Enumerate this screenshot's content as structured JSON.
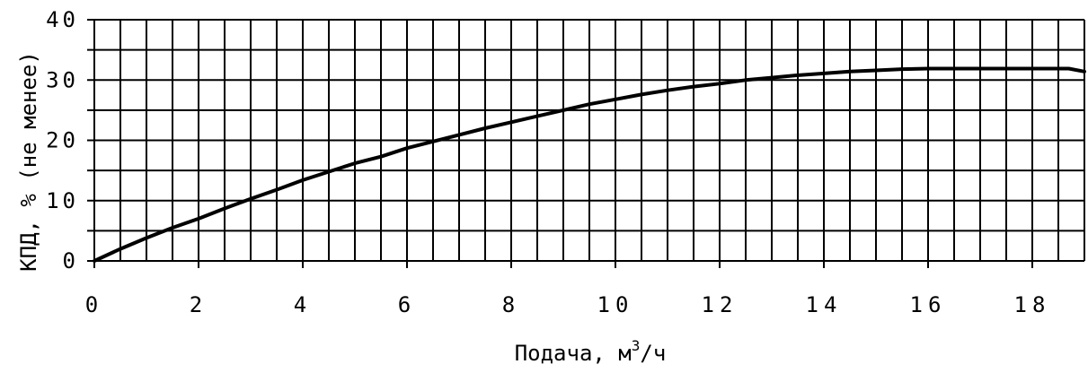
{
  "chart_data": {
    "type": "line",
    "xlabel": "Подача, м",
    "xlabel_sup": "3",
    "xlabel_tail": "/ч",
    "ylabel": "КПД, % (не менее)",
    "xlim": [
      0,
      19
    ],
    "ylim": [
      0,
      40
    ],
    "x_ticks": [
      0,
      2,
      4,
      6,
      8,
      10,
      12,
      14,
      16,
      18
    ],
    "x_tick_labels": [
      "0",
      "2",
      "4",
      "6",
      "8",
      "10",
      "12",
      "14",
      "16",
      "18"
    ],
    "y_ticks": [
      0,
      10,
      20,
      30,
      40
    ],
    "y_tick_labels": [
      "0",
      "10",
      "20",
      "30",
      "40"
    ],
    "grid": true,
    "x_minor_step": 0.5,
    "y_minor_step": 5,
    "series": [
      {
        "color": "#000000",
        "x": [
          0,
          0.5,
          1,
          1.5,
          2,
          2.5,
          3,
          3.5,
          4,
          4.5,
          5,
          5.5,
          6,
          6.5,
          7,
          7.5,
          8,
          8.5,
          9,
          9.5,
          10,
          10.5,
          11,
          11.5,
          12,
          12.5,
          13,
          13.5,
          14,
          14.5,
          15,
          15.5,
          16,
          16.5,
          17,
          17.5,
          18,
          18.5,
          18.7,
          19
        ],
        "y": [
          0,
          2,
          3.8,
          5.5,
          7,
          8.7,
          10.3,
          11.8,
          13.4,
          14.8,
          16.2,
          17.3,
          18.7,
          19.8,
          20.9,
          22,
          23,
          24,
          25,
          26,
          26.8,
          27.6,
          28.3,
          28.9,
          29.4,
          30,
          30.4,
          30.8,
          31.1,
          31.4,
          31.6,
          31.8,
          31.9,
          31.9,
          31.9,
          31.9,
          31.9,
          31.9,
          31.9,
          31.4
        ]
      }
    ]
  }
}
